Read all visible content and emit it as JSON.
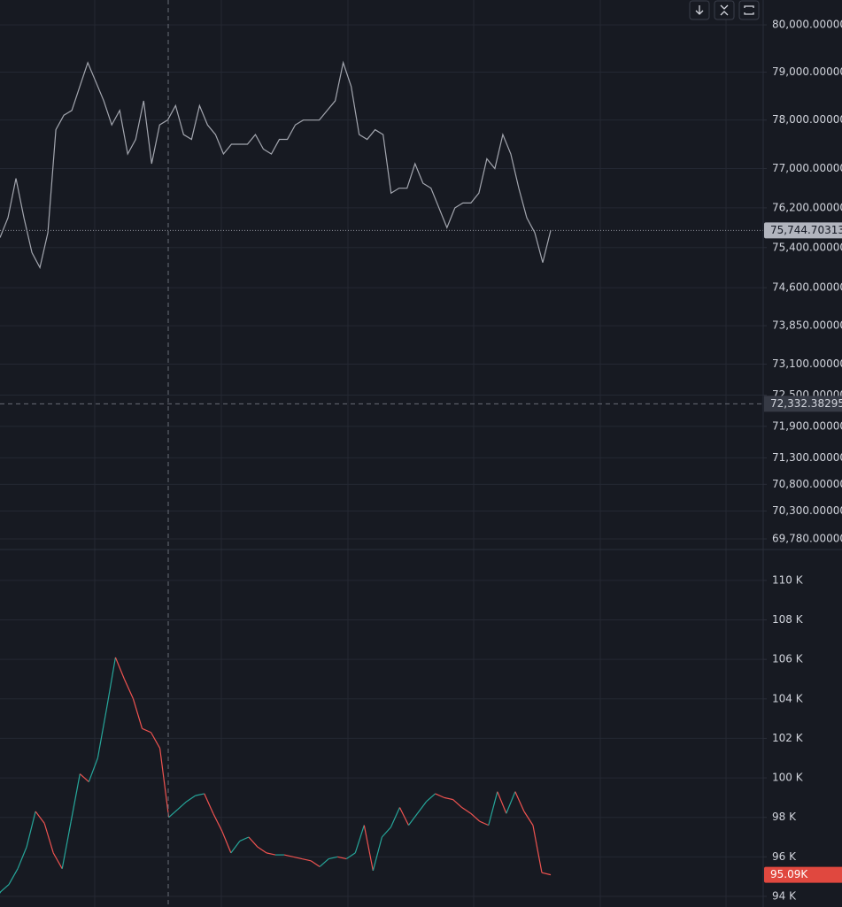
{
  "chart_data": [
    {
      "type": "line",
      "log": true,
      "grid": true,
      "color": "#a3a6af",
      "ylim": [
        69600,
        80530
      ],
      "yticks": [
        {
          "value": 80000,
          "label": "80,000.00000"
        },
        {
          "value": 79000,
          "label": "79,000.00000"
        },
        {
          "value": 78000,
          "label": "78,000.00000"
        },
        {
          "value": 77000,
          "label": "77,000.00000"
        },
        {
          "value": 76200,
          "label": "76,200.00000"
        },
        {
          "value": 75400,
          "label": "75,400.00000"
        },
        {
          "value": 74600,
          "label": "74,600.00000"
        },
        {
          "value": 73850,
          "label": "73,850.00000"
        },
        {
          "value": 73100,
          "label": "73,100.00000"
        },
        {
          "value": 72500,
          "label": "72,500.00000"
        },
        {
          "value": 71900,
          "label": "71,900.00000"
        },
        {
          "value": 71300,
          "label": "71,300.00000"
        },
        {
          "value": 70800,
          "label": "70,800.00000"
        },
        {
          "value": 70300,
          "label": "70,300.00000"
        },
        {
          "value": 69780,
          "label": "69,780.00000"
        }
      ],
      "values": [
        75600,
        76000,
        76800,
        76000,
        75300,
        75000,
        75700,
        77800,
        78100,
        78200,
        78700,
        79200,
        78800,
        78400,
        77900,
        78200,
        77300,
        77600,
        78400,
        77100,
        77900,
        78000,
        78300,
        77700,
        77600,
        78300,
        77900,
        77700,
        77300,
        77500,
        77500,
        77500,
        77700,
        77400,
        77300,
        77600,
        77600,
        77900,
        78000,
        78000,
        78000,
        78200,
        78400,
        79200,
        78700,
        77700,
        77600,
        77800,
        77700,
        76500,
        76600,
        76600,
        77100,
        76700,
        76600,
        76200,
        75800,
        76200,
        76300,
        76300,
        76500,
        77200,
        77000,
        77700,
        77300,
        76600,
        76000,
        75700,
        75100,
        75745
      ],
      "last_label": {
        "value": 75744.70313,
        "label": "75,744.70313"
      },
      "crosshair": {
        "value": 72332.38295,
        "label": "72,332.38295"
      }
    },
    {
      "type": "line",
      "grid": true,
      "up_color": "#26a69a",
      "down_color": "#ef5350",
      "ylim": [
        93.46,
        111.52
      ],
      "yticks": [
        {
          "value": 110,
          "label": "110 K"
        },
        {
          "value": 108,
          "label": "108 K"
        },
        {
          "value": 106,
          "label": "106 K"
        },
        {
          "value": 104,
          "label": "104 K"
        },
        {
          "value": 102,
          "label": "102 K"
        },
        {
          "value": 100,
          "label": "100 K"
        },
        {
          "value": 98,
          "label": "98 K"
        },
        {
          "value": 96,
          "label": "96 K"
        },
        {
          "value": 94,
          "label": "94 K"
        }
      ],
      "values": [
        94.2,
        94.6,
        95.4,
        96.5,
        98.3,
        97.7,
        96.2,
        95.4,
        97.8,
        100.2,
        99.8,
        101.0,
        103.5,
        106.1,
        105.0,
        104.0,
        102.5,
        102.3,
        101.5,
        98.0,
        98.4,
        98.8,
        99.1,
        99.2,
        98.2,
        97.3,
        96.2,
        96.8,
        97.0,
        96.5,
        96.2,
        96.1,
        96.1,
        96.0,
        95.9,
        95.8,
        95.5,
        95.9,
        96.0,
        95.9,
        96.2,
        97.6,
        95.3,
        97.0,
        97.5,
        98.5,
        97.6,
        98.2,
        98.8,
        99.2,
        99.0,
        98.9,
        98.5,
        98.2,
        97.8,
        97.6,
        99.3,
        98.2,
        99.3,
        98.3,
        97.6,
        95.2,
        95.09
      ],
      "last_label": {
        "value": 95.09,
        "label": "95.09K"
      }
    }
  ]
}
